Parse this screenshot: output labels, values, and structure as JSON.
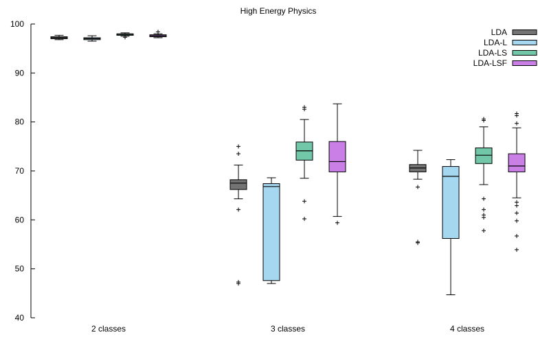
{
  "chart_data": {
    "type": "box",
    "title": "High Energy Physics",
    "xlabel": "",
    "ylabel": "",
    "ylim": [
      40,
      100
    ],
    "yticks": [
      40,
      50,
      60,
      70,
      80,
      90,
      100
    ],
    "categories": [
      "2 classes",
      "3 classes",
      "4 classes"
    ],
    "legend_position": "top-right",
    "grid": false,
    "series": [
      {
        "name": "LDA",
        "color": "#737373",
        "boxes": [
          {
            "category": "2 classes",
            "whisker_low": 96.8,
            "q1": 97.0,
            "median": 97.2,
            "q3": 97.4,
            "whisker_high": 97.7,
            "outliers": []
          },
          {
            "category": "3 classes",
            "whisker_low": 64.3,
            "q1": 66.2,
            "median": 67.5,
            "q3": 68.2,
            "whisker_high": 71.2,
            "outliers": [
              75.0,
              73.5,
              62.1,
              47.3,
              47.0
            ]
          },
          {
            "category": "4 classes",
            "whisker_low": 68.3,
            "q1": 69.8,
            "median": 70.6,
            "q3": 71.3,
            "whisker_high": 74.2,
            "outliers": [
              66.7,
              55.5,
              55.3
            ]
          }
        ]
      },
      {
        "name": "LDA-L",
        "color": "#a6d7f0",
        "boxes": [
          {
            "category": "2 classes",
            "whisker_low": 96.5,
            "q1": 96.8,
            "median": 97.0,
            "q3": 97.2,
            "whisker_high": 97.6,
            "outliers": []
          },
          {
            "category": "3 classes",
            "whisker_low": 47.0,
            "q1": 47.6,
            "median": 66.8,
            "q3": 67.4,
            "whisker_high": 68.6,
            "outliers": []
          },
          {
            "category": "4 classes",
            "whisker_low": 44.7,
            "q1": 56.2,
            "median": 68.9,
            "q3": 70.9,
            "whisker_high": 72.3,
            "outliers": []
          }
        ]
      },
      {
        "name": "LDA-LS",
        "color": "#72c7a8",
        "boxes": [
          {
            "category": "2 classes",
            "whisker_low": 97.5,
            "q1": 97.7,
            "median": 97.9,
            "q3": 98.0,
            "whisker_high": 98.2,
            "outliers": [
              97.3
            ]
          },
          {
            "category": "3 classes",
            "whisker_low": 68.5,
            "q1": 72.2,
            "median": 74.1,
            "q3": 75.9,
            "whisker_high": 80.5,
            "outliers": [
              83.0,
              82.6,
              63.8,
              60.2
            ]
          },
          {
            "category": "4 classes",
            "whisker_low": 67.2,
            "q1": 71.5,
            "median": 73.2,
            "q3": 74.7,
            "whisker_high": 79.0,
            "outliers": [
              80.6,
              80.3,
              64.3,
              62.1,
              61.0,
              60.5,
              57.8
            ]
          }
        ]
      },
      {
        "name": "LDA-LSF",
        "color": "#c97fe6",
        "boxes": [
          {
            "category": "2 classes",
            "whisker_low": 97.2,
            "q1": 97.4,
            "median": 97.6,
            "q3": 97.8,
            "whisker_high": 98.0,
            "outliers": [
              98.4
            ]
          },
          {
            "category": "3 classes",
            "whisker_low": 60.7,
            "q1": 69.8,
            "median": 71.9,
            "q3": 76.0,
            "whisker_high": 83.7,
            "outliers": [
              59.4
            ]
          },
          {
            "category": "4 classes",
            "whisker_low": 64.5,
            "q1": 69.8,
            "median": 71.0,
            "q3": 73.5,
            "whisker_high": 78.8,
            "outliers": [
              81.7,
              81.3,
              79.7,
              63.6,
              62.9,
              61.4,
              59.8,
              56.7,
              53.9
            ]
          }
        ]
      }
    ]
  }
}
